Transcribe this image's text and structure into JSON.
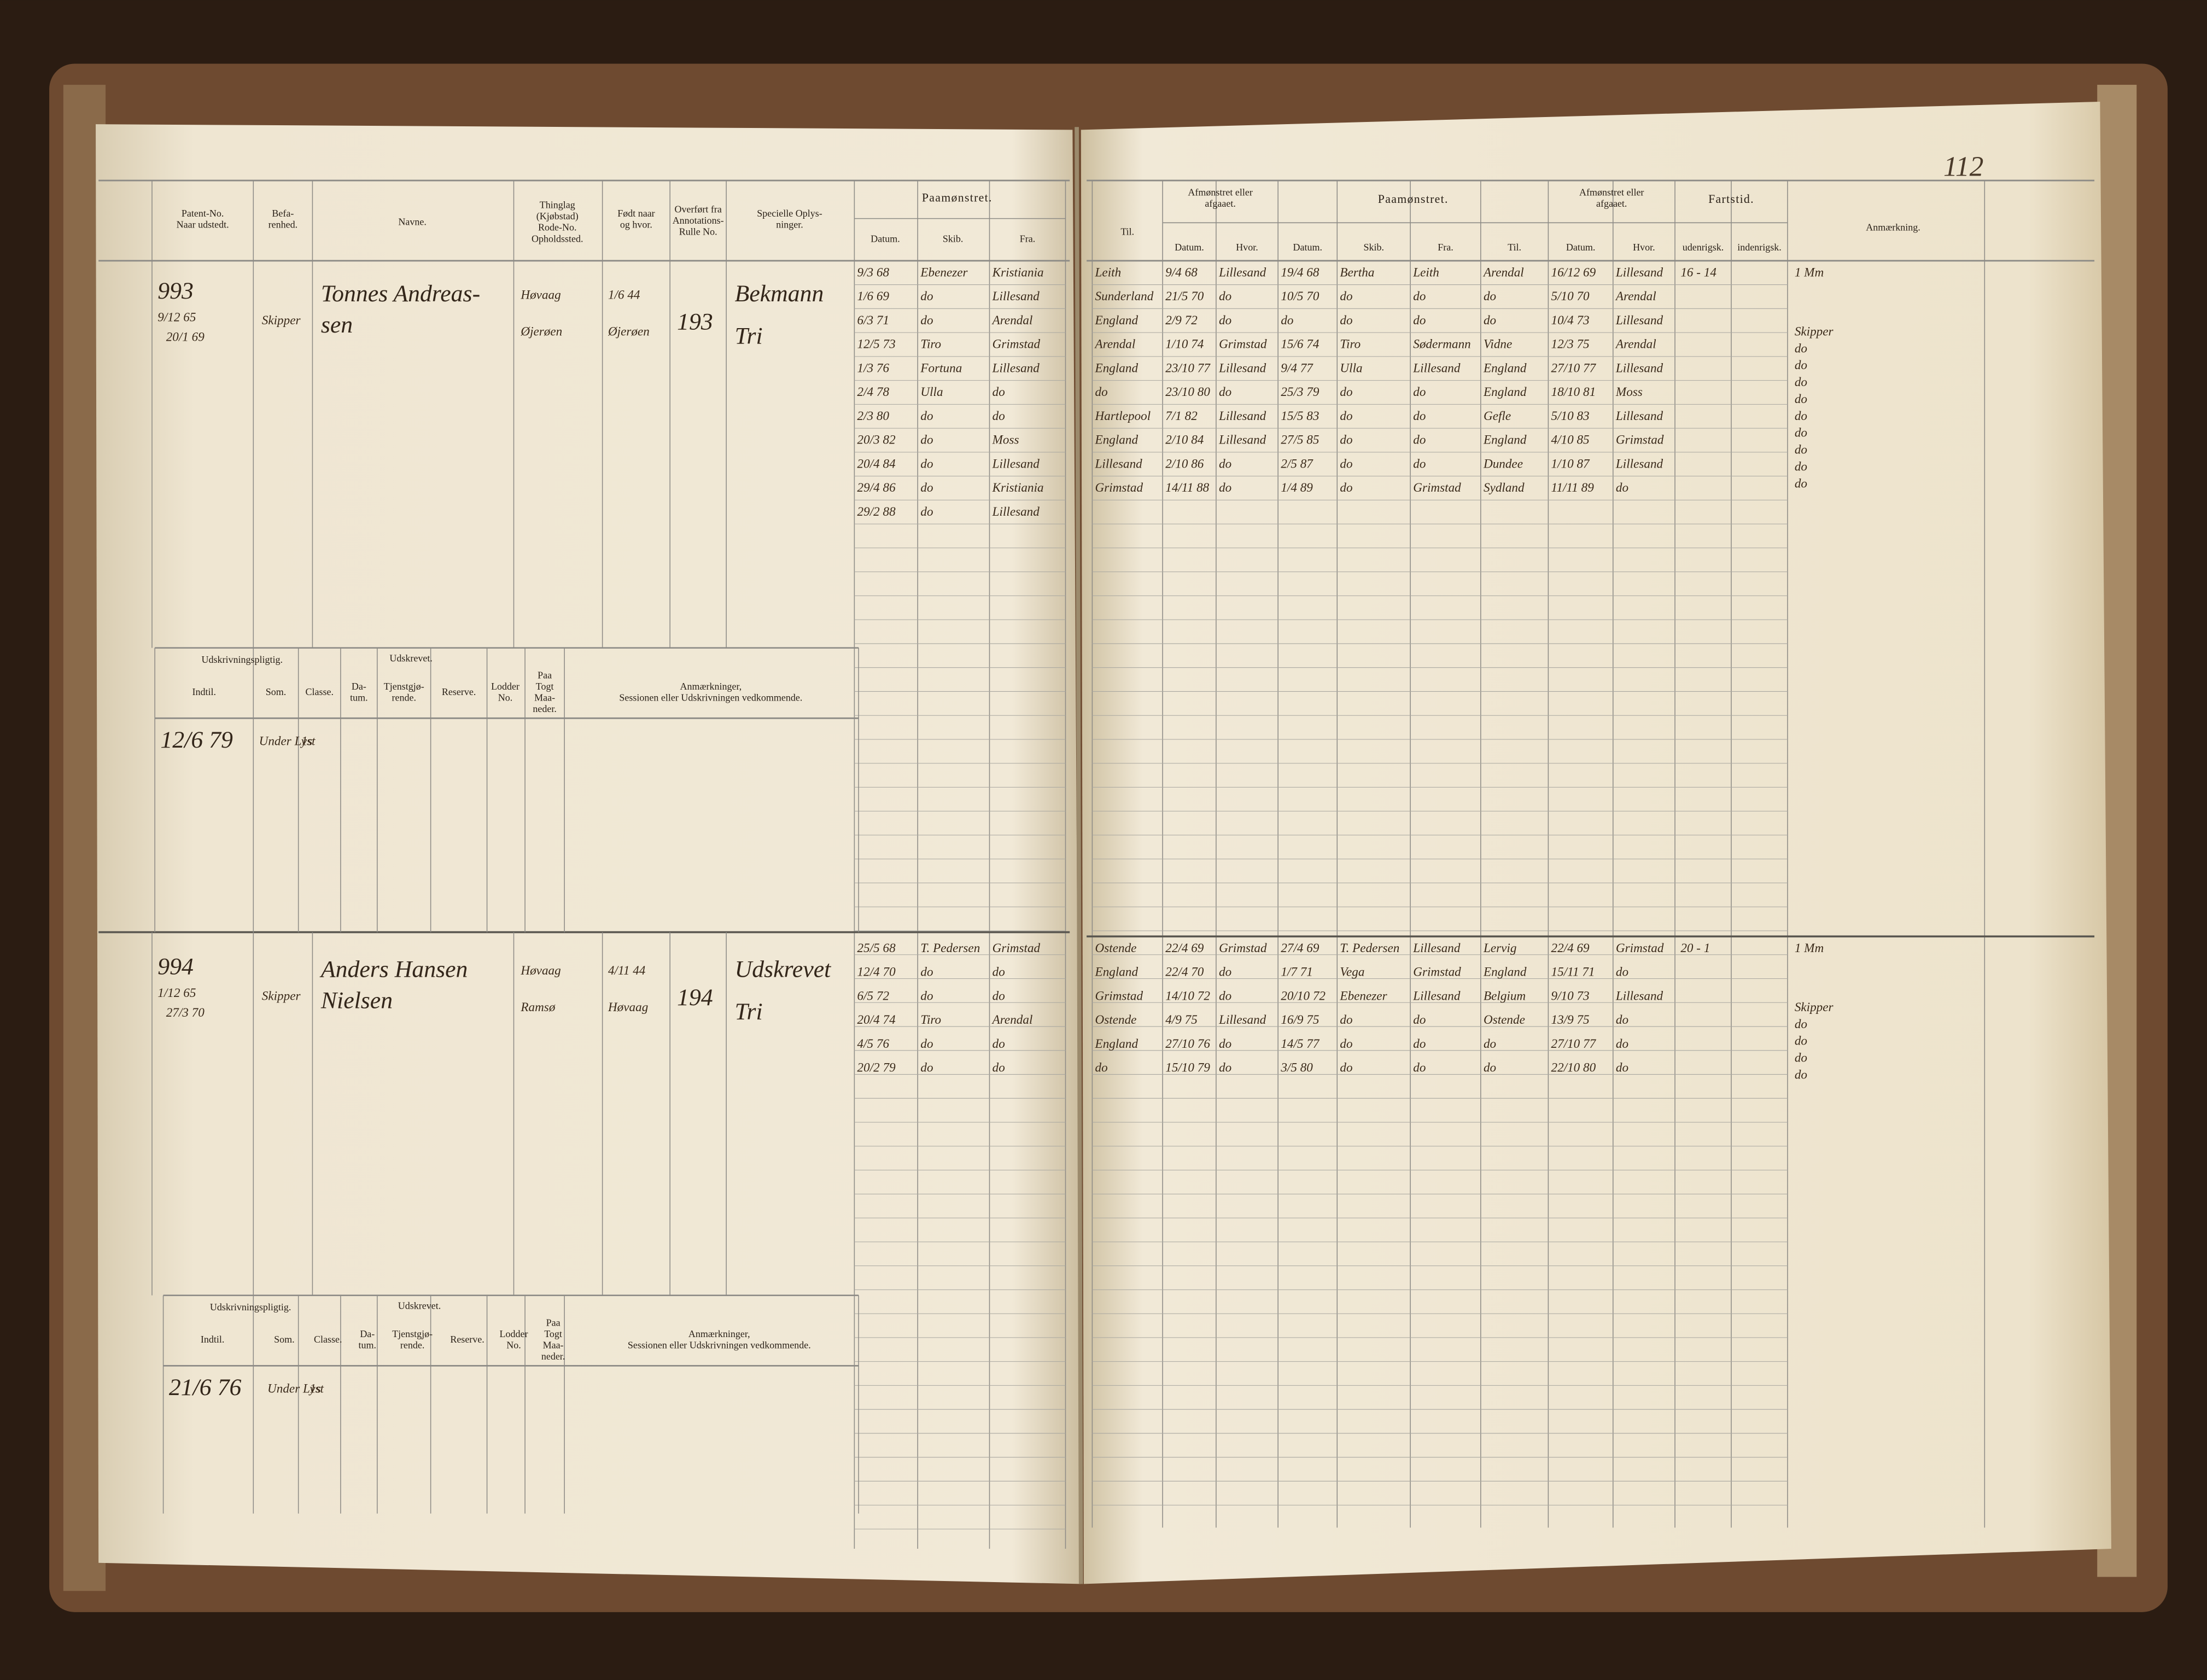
{
  "page_number": "112",
  "left_headers": [
    [
      "Patent-No.",
      "Naar udstedt."
    ],
    [
      "Befa-",
      "renhed."
    ],
    [
      "Navne."
    ],
    [
      "Thinglag",
      "(Kjøbstad)",
      "Rode-No.",
      "Opholdssted."
    ],
    [
      "Født naar",
      "og hvor."
    ],
    [
      "Overført fra",
      "Annotations-",
      "Rulle No."
    ],
    [
      "Specielle Oplys-",
      "ninger."
    ]
  ],
  "left_group": {
    "title": "Paamønstret.",
    "columns": [
      "Datum.",
      "Skib.",
      "Fra."
    ]
  },
  "right_headers": {
    "til": "Til.",
    "afm1": {
      "title": [
        "Afmønstret eller",
        "afgaaet."
      ],
      "columns": [
        "Datum.",
        "Hvor."
      ]
    },
    "paam": {
      "title": "Paamønstret.",
      "columns": [
        "Datum.",
        "Skib.",
        "Fra.",
        "Til."
      ]
    },
    "afm2": {
      "title": [
        "Afmønstret eller",
        "afgaaet."
      ],
      "columns": [
        "Datum.",
        "Hvor."
      ]
    },
    "fart": {
      "title": "Fartstid.",
      "columns": [
        "udenrigsk.",
        "indenrigsk."
      ]
    },
    "anm": "Anmærkning."
  },
  "sub_headers": {
    "group1": "Udskrivningspligtig.",
    "group2": "Udskrevet.",
    "columns": [
      [
        "Indtil."
      ],
      [
        "Som."
      ],
      [
        "Classe."
      ],
      [
        "Da-",
        "tum."
      ],
      [
        "Tjenstgjø-",
        "rende."
      ],
      [
        "Reserve."
      ],
      [
        "Lodder",
        "No."
      ],
      [
        "Paa",
        "Togt",
        "Maa-",
        "neder."
      ],
      [
        "Anmærkninger,",
        "Sessionen eller Udskrivningen vedkommende."
      ]
    ]
  },
  "records": [
    {
      "number": "993",
      "dates": [
        "9/12 65",
        "20/1 69"
      ],
      "rank": "Skipper",
      "name": [
        "Tonnes Andreas-",
        "sen"
      ],
      "place": [
        "Høvaag",
        "Øjerøen"
      ],
      "born": [
        "1/6 44",
        "Øjerøen"
      ],
      "rulle": "193",
      "notes": [
        "Bekmann",
        "Tri"
      ],
      "left_rows": [
        [
          "9/3 68",
          "Ebenezer",
          "Kristiania"
        ],
        [
          "1/6 69",
          "do",
          "Lillesand"
        ],
        [
          "6/3 71",
          "do",
          "Arendal"
        ],
        [
          "12/5 73",
          "Tiro",
          "Grimstad"
        ],
        [
          "1/3 76",
          "Fortuna",
          "Lillesand"
        ],
        [
          "2/4 78",
          "Ulla",
          "do"
        ],
        [
          "2/3 80",
          "do",
          "do"
        ],
        [
          "20/3 82",
          "do",
          "Moss"
        ],
        [
          "20/4 84",
          "do",
          "Lillesand"
        ],
        [
          "29/4 86",
          "do",
          "Kristiania"
        ],
        [
          "29/2 88",
          "do",
          "Lillesand"
        ]
      ],
      "right_rows": [
        [
          "Leith",
          "9/4 68",
          "Lillesand",
          "19/4 68",
          "Bertha",
          "Leith",
          "Arendal",
          "16/12 69",
          "Lillesand"
        ],
        [
          "Sunderland",
          "21/5 70",
          "do",
          "10/5 70",
          "do",
          "do",
          "do",
          "5/10 70",
          "Arendal"
        ],
        [
          "England",
          "2/9 72",
          "do",
          "do",
          "do",
          "do",
          "do",
          "10/4 73",
          "Lillesand"
        ],
        [
          "Arendal",
          "1/10 74",
          "Grimstad",
          "15/6 74",
          "Tiro",
          "Sødermann",
          "Vidne",
          "12/3 75",
          "Arendal"
        ],
        [
          "England",
          "23/10 77",
          "Lillesand",
          "9/4 77",
          "Ulla",
          "Lillesand",
          "England",
          "27/10 77",
          "Lillesand"
        ],
        [
          "do",
          "23/10 80",
          "do",
          "25/3 79",
          "do",
          "do",
          "England",
          "18/10 81",
          "Moss"
        ],
        [
          "Hartlepool",
          "7/1 82",
          "Lillesand",
          "15/5 83",
          "do",
          "do",
          "Gefle",
          "5/10 83",
          "Lillesand"
        ],
        [
          "England",
          "2/10 84",
          "Lillesand",
          "27/5 85",
          "do",
          "do",
          "England",
          "4/10 85",
          "Grimstad"
        ],
        [
          "Lillesand",
          "2/10 86",
          "do",
          "2/5 87",
          "do",
          "do",
          "Dundee",
          "1/10 87",
          "Lillesand"
        ],
        [
          "Grimstad",
          "14/11 88",
          "do",
          "1/4 89",
          "do",
          "Grimstad",
          "Sydland",
          "11/11 89",
          "do"
        ]
      ],
      "fartstid": [
        "16 - 14",
        "1 Mm"
      ],
      "remarks": [
        "Skipper",
        "do",
        "do",
        "do",
        "do",
        "do",
        "do",
        "do",
        "do",
        "do"
      ],
      "sub_row": [
        "12/6 79",
        "Under Lyst",
        "1s"
      ]
    },
    {
      "number": "994",
      "dates": [
        "1/12 65",
        "27/3 70"
      ],
      "rank": "Skipper",
      "name": [
        "Anders Hansen",
        "Nielsen"
      ],
      "place": [
        "Høvaag",
        "Ramsø"
      ],
      "born": [
        "4/11 44",
        "Høvaag"
      ],
      "rulle": "194",
      "notes": [
        "Udskrevet",
        "Tri"
      ],
      "left_rows": [
        [
          "25/5 68",
          "T. Pedersen",
          "Grimstad"
        ],
        [
          "12/4 70",
          "do",
          "do"
        ],
        [
          "6/5 72",
          "do",
          "do"
        ],
        [
          "20/4 74",
          "Tiro",
          "Arendal"
        ],
        [
          "4/5 76",
          "do",
          "do"
        ],
        [
          "20/2 79",
          "do",
          "do"
        ]
      ],
      "right_rows": [
        [
          "Ostende",
          "22/4 69",
          "Grimstad",
          "27/4 69",
          "T. Pedersen",
          "Lillesand",
          "Lervig",
          "22/4 69",
          "Grimstad"
        ],
        [
          "England",
          "22/4 70",
          "do",
          "1/7 71",
          "Vega",
          "Grimstad",
          "England",
          "15/11 71",
          "do"
        ],
        [
          "Grimstad",
          "14/10 72",
          "do",
          "20/10 72",
          "Ebenezer",
          "Lillesand",
          "Belgium",
          "9/10 73",
          "Lillesand"
        ],
        [
          "Ostende",
          "4/9 75",
          "Lillesand",
          "16/9 75",
          "do",
          "do",
          "Ostende",
          "13/9 75",
          "do"
        ],
        [
          "England",
          "27/10 76",
          "do",
          "14/5 77",
          "do",
          "do",
          "do",
          "27/10 77",
          "do"
        ],
        [
          "do",
          "15/10 79",
          "do",
          "3/5 80",
          "do",
          "do",
          "do",
          "22/10 80",
          "do"
        ]
      ],
      "fartstid": [
        "20 - 1",
        "1 Mm"
      ],
      "remarks": [
        "Skipper",
        "do",
        "do",
        "do",
        "do"
      ],
      "sub_row": [
        "21/6 76",
        "Under Lyst",
        "1s"
      ]
    }
  ]
}
